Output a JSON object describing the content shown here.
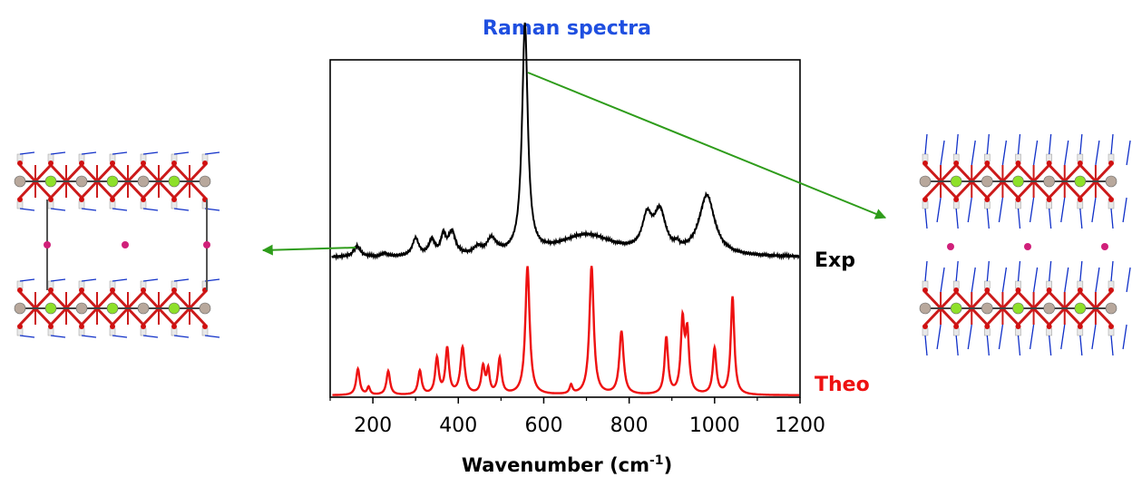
{
  "title": "Raman spectra",
  "xlabel_main": "Wavenumber (cm",
  "xlabel_sup": "-1",
  "xlabel_close": ")",
  "colors": {
    "title": "#1f4fe0",
    "exp": "#000000",
    "theo": "#ee1111",
    "arrow": "#2e9c1a"
  },
  "chart_data": {
    "type": "line",
    "title": "Raman spectra",
    "xlabel": "Wavenumber (cm-1)",
    "ylabel": "",
    "xlim": [
      100,
      1200
    ],
    "xticks": [
      200,
      400,
      600,
      800,
      1000,
      1200
    ],
    "series": [
      {
        "name": "Exp",
        "baseline": 0.3,
        "peaks": [
          {
            "x": 163,
            "h": 0.1,
            "w": 9
          },
          {
            "x": 228,
            "h": 0.03,
            "w": 7
          },
          {
            "x": 300,
            "h": 0.16,
            "w": 9
          },
          {
            "x": 338,
            "h": 0.14,
            "w": 8
          },
          {
            "x": 365,
            "h": 0.17,
            "w": 7
          },
          {
            "x": 385,
            "h": 0.21,
            "w": 10
          },
          {
            "x": 445,
            "h": 0.06,
            "w": 10
          },
          {
            "x": 478,
            "h": 0.14,
            "w": 14
          },
          {
            "x": 556,
            "h": 2.1,
            "w": 8
          },
          {
            "x": 700,
            "h": 0.2,
            "w": 80
          },
          {
            "x": 842,
            "h": 0.3,
            "w": 14
          },
          {
            "x": 872,
            "h": 0.36,
            "w": 16
          },
          {
            "x": 912,
            "h": 0.04,
            "w": 6
          },
          {
            "x": 982,
            "h": 0.55,
            "w": 22
          }
        ]
      },
      {
        "name": "Theo",
        "baseline": 0.0,
        "peaks": [
          {
            "x": 165,
            "h": 0.24,
            "w": 5
          },
          {
            "x": 190,
            "h": 0.07,
            "w": 4
          },
          {
            "x": 236,
            "h": 0.22,
            "w": 5
          },
          {
            "x": 310,
            "h": 0.22,
            "w": 5
          },
          {
            "x": 350,
            "h": 0.33,
            "w": 5
          },
          {
            "x": 374,
            "h": 0.42,
            "w": 5
          },
          {
            "x": 410,
            "h": 0.43,
            "w": 6
          },
          {
            "x": 458,
            "h": 0.25,
            "w": 5
          },
          {
            "x": 470,
            "h": 0.21,
            "w": 4
          },
          {
            "x": 497,
            "h": 0.33,
            "w": 5
          },
          {
            "x": 562,
            "h": 1.18,
            "w": 6
          },
          {
            "x": 664,
            "h": 0.08,
            "w": 4
          },
          {
            "x": 712,
            "h": 1.18,
            "w": 6
          },
          {
            "x": 782,
            "h": 0.58,
            "w": 6
          },
          {
            "x": 887,
            "h": 0.52,
            "w": 5
          },
          {
            "x": 925,
            "h": 0.65,
            "w": 5
          },
          {
            "x": 936,
            "h": 0.54,
            "w": 5
          },
          {
            "x": 1000,
            "h": 0.42,
            "w": 5
          },
          {
            "x": 1042,
            "h": 0.9,
            "w": 5
          }
        ]
      }
    ],
    "legend_labels": [
      "Exp",
      "Theo"
    ]
  }
}
